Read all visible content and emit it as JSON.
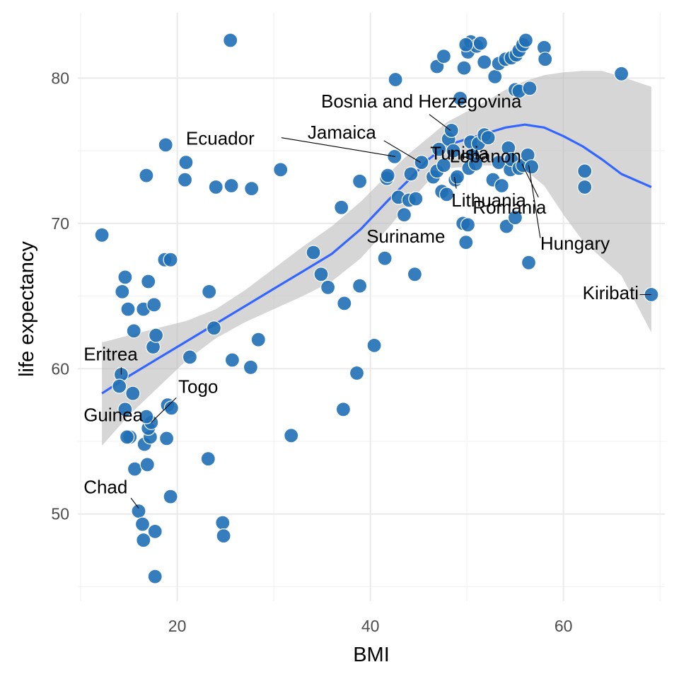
{
  "chart_data": {
    "type": "scatter",
    "title": "",
    "xlabel": "BMI",
    "ylabel": "life expectancy",
    "xlim": [
      9.7,
      70.5
    ],
    "ylim": [
      44.0,
      84.5
    ],
    "xticks": [
      20,
      40,
      60
    ],
    "yticks": [
      50,
      60,
      70,
      80
    ],
    "x_minor": [
      10,
      30,
      50,
      70
    ],
    "y_minor": [
      45,
      55,
      65,
      75
    ],
    "grid": true,
    "legend": "none",
    "colors": {
      "point": "#1f6fb5",
      "smooth_line": "#3366ff",
      "ribbon": "#bdbdbd",
      "grid": "#ebebeb"
    },
    "points": [
      [
        12.2,
        69.2
      ],
      [
        14.3,
        65.3
      ],
      [
        14.6,
        66.3
      ],
      [
        14.9,
        64.1
      ],
      [
        15.5,
        62.6
      ],
      [
        14.2,
        59.6
      ],
      [
        14.0,
        58.8
      ],
      [
        14.6,
        57.2
      ],
      [
        15.4,
        58.3
      ],
      [
        15.1,
        55.3
      ],
      [
        14.8,
        55.3
      ],
      [
        15.6,
        53.1
      ],
      [
        16.0,
        50.2
      ],
      [
        16.4,
        49.3
      ],
      [
        16.5,
        48.2
      ],
      [
        17.7,
        48.8
      ],
      [
        17.7,
        45.7
      ],
      [
        16.6,
        54.8
      ],
      [
        16.9,
        53.4
      ],
      [
        17.2,
        55.3
      ],
      [
        17.0,
        55.9
      ],
      [
        17.3,
        56.3
      ],
      [
        16.8,
        56.7
      ],
      [
        18.9,
        55.2
      ],
      [
        19.3,
        51.2
      ],
      [
        19.0,
        57.5
      ],
      [
        19.4,
        57.3
      ],
      [
        16.5,
        64.1
      ],
      [
        17.0,
        66.0
      ],
      [
        17.6,
        64.4
      ],
      [
        17.5,
        61.5
      ],
      [
        17.8,
        62.3
      ],
      [
        18.7,
        67.5
      ],
      [
        19.3,
        67.5
      ],
      [
        18.8,
        75.4
      ],
      [
        16.8,
        73.3
      ],
      [
        20.9,
        74.2
      ],
      [
        20.8,
        73.0
      ],
      [
        21.3,
        60.8
      ],
      [
        24.0,
        72.5
      ],
      [
        25.6,
        72.6
      ],
      [
        25.5,
        82.6
      ],
      [
        27.7,
        72.4
      ],
      [
        23.3,
        65.3
      ],
      [
        23.8,
        62.8
      ],
      [
        25.7,
        60.6
      ],
      [
        27.6,
        60.1
      ],
      [
        28.4,
        62.0
      ],
      [
        23.2,
        53.8
      ],
      [
        24.7,
        49.4
      ],
      [
        24.8,
        48.5
      ],
      [
        30.7,
        73.7
      ],
      [
        31.8,
        55.4
      ],
      [
        34.1,
        68.0
      ],
      [
        34.9,
        66.5
      ],
      [
        35.6,
        65.6
      ],
      [
        37.0,
        71.1
      ],
      [
        37.3,
        64.5
      ],
      [
        37.2,
        57.2
      ],
      [
        38.6,
        59.7
      ],
      [
        38.9,
        65.7
      ],
      [
        38.9,
        72.9
      ],
      [
        40.4,
        61.6
      ],
      [
        41.5,
        67.6
      ],
      [
        41.7,
        73.1
      ],
      [
        41.8,
        73.3
      ],
      [
        42.5,
        74.6
      ],
      [
        42.6,
        79.9
      ],
      [
        42.9,
        71.8
      ],
      [
        43.5,
        70.6
      ],
      [
        44.0,
        71.6
      ],
      [
        44.2,
        73.4
      ],
      [
        44.6,
        66.5
      ],
      [
        44.7,
        71.7
      ],
      [
        45.3,
        74.2
      ],
      [
        46.5,
        73.2
      ],
      [
        46.9,
        73.6
      ],
      [
        47.1,
        75.1
      ],
      [
        47.4,
        72.2
      ],
      [
        47.6,
        74.0
      ],
      [
        47.9,
        72.0
      ],
      [
        48.1,
        75.8
      ],
      [
        48.4,
        76.4
      ],
      [
        48.6,
        75.0
      ],
      [
        48.8,
        73.0
      ],
      [
        49.0,
        73.2
      ],
      [
        49.3,
        78.6
      ],
      [
        49.6,
        70.0
      ],
      [
        49.9,
        68.7
      ],
      [
        50.1,
        69.9
      ],
      [
        50.2,
        73.8
      ],
      [
        50.4,
        75.6
      ],
      [
        50.6,
        74.7
      ],
      [
        50.9,
        74.1
      ],
      [
        51.2,
        75.5
      ],
      [
        51.8,
        76.1
      ],
      [
        52.2,
        75.9
      ],
      [
        52.7,
        73.0
      ],
      [
        53.3,
        74.2
      ],
      [
        53.6,
        72.6
      ],
      [
        54.1,
        69.8
      ],
      [
        54.3,
        75.2
      ],
      [
        54.5,
        73.7
      ],
      [
        54.6,
        74.4
      ],
      [
        55.0,
        70.4
      ],
      [
        55.4,
        73.8
      ],
      [
        55.8,
        74.0
      ],
      [
        56.3,
        74.7
      ],
      [
        56.4,
        67.3
      ],
      [
        56.7,
        73.9
      ],
      [
        49.7,
        80.7
      ],
      [
        50.1,
        81.8
      ],
      [
        50.4,
        82.5
      ],
      [
        51.0,
        82.2
      ],
      [
        51.4,
        82.4
      ],
      [
        51.8,
        81.1
      ],
      [
        52.9,
        80.1
      ],
      [
        53.3,
        81.0
      ],
      [
        54.0,
        81.3
      ],
      [
        54.6,
        81.4
      ],
      [
        55.1,
        81.6
      ],
      [
        55.4,
        81.9
      ],
      [
        55.8,
        82.3
      ],
      [
        56.1,
        82.6
      ],
      [
        55.0,
        79.2
      ],
      [
        55.4,
        79.1
      ],
      [
        56.5,
        79.3
      ],
      [
        58.0,
        82.1
      ],
      [
        58.1,
        81.3
      ],
      [
        46.9,
        80.8
      ],
      [
        47.6,
        81.5
      ],
      [
        49.9,
        82.3
      ],
      [
        62.2,
        73.6
      ],
      [
        62.2,
        72.5
      ],
      [
        66.0,
        80.3
      ],
      [
        69.1,
        65.1
      ]
    ],
    "smooth": {
      "x": [
        12.2,
        15,
        18,
        21,
        24,
        27,
        30,
        33,
        36,
        39,
        42,
        44,
        46,
        48,
        50,
        52,
        54,
        56,
        58,
        60,
        62,
        64,
        66,
        69.1
      ],
      "y": [
        58.3,
        59.5,
        60.7,
        61.9,
        63.1,
        64.3,
        65.5,
        66.7,
        67.9,
        69.6,
        71.7,
        73.0,
        74.4,
        75.4,
        75.8,
        76.2,
        76.6,
        76.8,
        76.6,
        76.0,
        75.3,
        74.4,
        73.4,
        72.5
      ],
      "lower": [
        54.7,
        56.8,
        58.7,
        60.6,
        62.1,
        63.2,
        64.1,
        65.0,
        66.0,
        67.6,
        69.8,
        71.4,
        72.9,
        73.8,
        73.9,
        74.0,
        73.9,
        73.7,
        72.6,
        70.6,
        68.8,
        67.6,
        66.4,
        62.5
      ],
      "upper": [
        61.8,
        62.3,
        62.8,
        63.3,
        64.1,
        65.4,
        66.9,
        68.4,
        69.8,
        71.5,
        73.5,
        74.8,
        75.9,
        77.0,
        77.7,
        78.4,
        79.2,
        79.8,
        80.2,
        80.4,
        80.5,
        80.5,
        80.1,
        79.4
      ]
    },
    "annotations": [
      {
        "label": "Bosnia and Herzegovina",
        "point": [
          48.3,
          76.4
        ],
        "text_at": [
          34.9,
          77.98
        ],
        "anchor": "start",
        "line_from": [
          46.1,
          77.5
        ]
      },
      {
        "label": "Ecuador",
        "point": [
          42.6,
          74.6
        ],
        "text_at": [
          20.9,
          75.43
        ],
        "anchor": "start",
        "line_from": [
          30.8,
          75.9
        ]
      },
      {
        "label": "Jamaica",
        "point": [
          45.2,
          74.2
        ],
        "text_at": [
          33.5,
          75.84
        ],
        "anchor": "start",
        "line_from": [
          41.4,
          75.7
        ]
      },
      {
        "label": "Tunisia",
        "point": [
          47.1,
          75.1
        ],
        "text_at": [
          46.2,
          74.4
        ],
        "anchor": "start",
        "line_from": null
      },
      {
        "label": "Lebanon",
        "point": [
          55.8,
          74.0
        ],
        "text_at": [
          48.2,
          74.2
        ],
        "anchor": "start",
        "line_from": null
      },
      {
        "label": "Lithuania",
        "point": [
          48.7,
          73.2
        ],
        "text_at": [
          48.4,
          71.16
        ],
        "anchor": "start",
        "line_from": [
          48.9,
          72.4
        ]
      },
      {
        "label": "Romania",
        "point": [
          55.7,
          74.1
        ],
        "text_at": [
          50.6,
          70.67
        ],
        "anchor": "start",
        "line_from": [
          57.4,
          71.8
        ]
      },
      {
        "label": "Suriname",
        "point": [
          44.0,
          69.4
        ],
        "text_at": [
          39.6,
          68.68
        ],
        "anchor": "start",
        "line_from": null
      },
      {
        "label": "Hungary",
        "point": [
          56.4,
          74.0
        ],
        "text_at": [
          57.6,
          68.2
        ],
        "anchor": "start",
        "line_from": [
          57.6,
          69.0
        ]
      },
      {
        "label": "Kiribati",
        "point": [
          69.1,
          65.1
        ],
        "text_at": [
          67.8,
          64.78
        ],
        "anchor": "end",
        "line_from": [
          67.9,
          65.1
        ]
      },
      {
        "label": "Eritrea",
        "point": [
          14.2,
          59.6
        ],
        "text_at": [
          10.3,
          60.58
        ],
        "anchor": "start",
        "line_from": [
          14.2,
          60.1
        ]
      },
      {
        "label": "Togo",
        "point": [
          17.3,
          56.3
        ],
        "text_at": [
          20.1,
          58.33
        ],
        "anchor": "start",
        "line_from": [
          19.9,
          58.0
        ]
      },
      {
        "label": "Guinea",
        "point": [
          16.8,
          56.6
        ],
        "text_at": [
          10.3,
          56.4
        ],
        "anchor": "start",
        "line_from": null
      },
      {
        "label": "Chad",
        "point": [
          16.0,
          50.4
        ],
        "text_at": [
          10.3,
          51.43
        ],
        "anchor": "start",
        "line_from": [
          15.2,
          51.1
        ]
      }
    ]
  }
}
